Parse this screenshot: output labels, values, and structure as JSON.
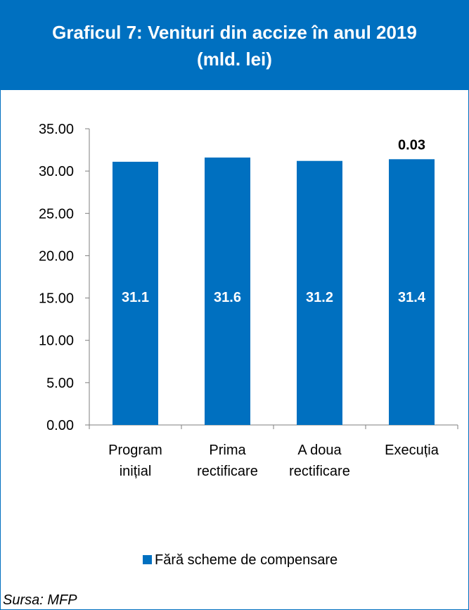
{
  "header": {
    "title_line1": "Graficul 7: Venituri din accize în anul 2019",
    "title_line2": "(mld. lei)",
    "background": "#0070C0"
  },
  "source": "Sursa: MFP",
  "colors": {
    "bar": "#0070C0",
    "frame": "#0070C0",
    "axis": "#7F7F7F"
  },
  "chart_data": {
    "type": "bar",
    "categories": [
      [
        "Program",
        "inițial"
      ],
      [
        "Prima",
        "rectificare"
      ],
      [
        "A doua",
        "rectificare"
      ],
      [
        "Execuția"
      ]
    ],
    "series": [
      {
        "name": "Fără scheme de compensare",
        "values": [
          31.1,
          31.6,
          31.2,
          31.4
        ],
        "data_labels": [
          "31.1",
          "31.6",
          "31.2",
          "31.4"
        ]
      }
    ],
    "annotations": [
      {
        "category_index": 3,
        "text": "0.03"
      }
    ],
    "y_ticks": [
      "0.00",
      "5.00",
      "10.00",
      "15.00",
      "20.00",
      "25.00",
      "30.00",
      "35.00"
    ],
    "ylim": [
      0,
      35
    ],
    "legend_position": "bottom",
    "grid": false
  }
}
